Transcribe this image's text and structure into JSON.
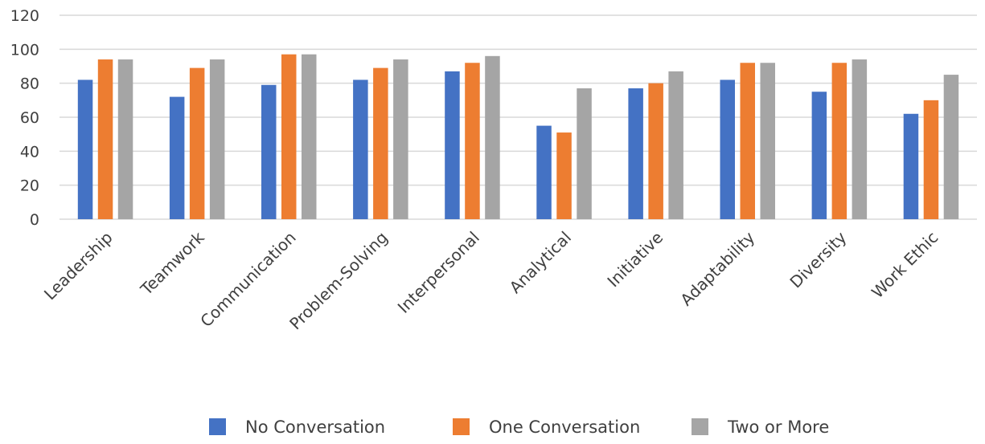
{
  "chart_data": {
    "type": "bar",
    "title": "",
    "xlabel": "",
    "ylabel": "",
    "ylim": [
      0,
      120
    ],
    "yticks": [
      0,
      20,
      40,
      60,
      80,
      100,
      120
    ],
    "grid": true,
    "legend_position": "bottom",
    "categories": [
      "Leadership",
      "Teamwork",
      "Communication",
      "Problem-Solving",
      "Interpersonal",
      "Analytical",
      "Initiative",
      "Adaptability",
      "Diversity",
      "Work Ethic"
    ],
    "series": [
      {
        "name": "No Conversation",
        "color": "#4472c4",
        "values": [
          82,
          72,
          79,
          82,
          87,
          55,
          77,
          82,
          75,
          62
        ]
      },
      {
        "name": "One Conversation",
        "color": "#ed7d31",
        "values": [
          94,
          89,
          97,
          89,
          92,
          51,
          80,
          92,
          92,
          70
        ]
      },
      {
        "name": "Two or More",
        "color": "#a5a5a5",
        "values": [
          94,
          94,
          97,
          94,
          96,
          77,
          87,
          92,
          94,
          85
        ]
      }
    ]
  }
}
